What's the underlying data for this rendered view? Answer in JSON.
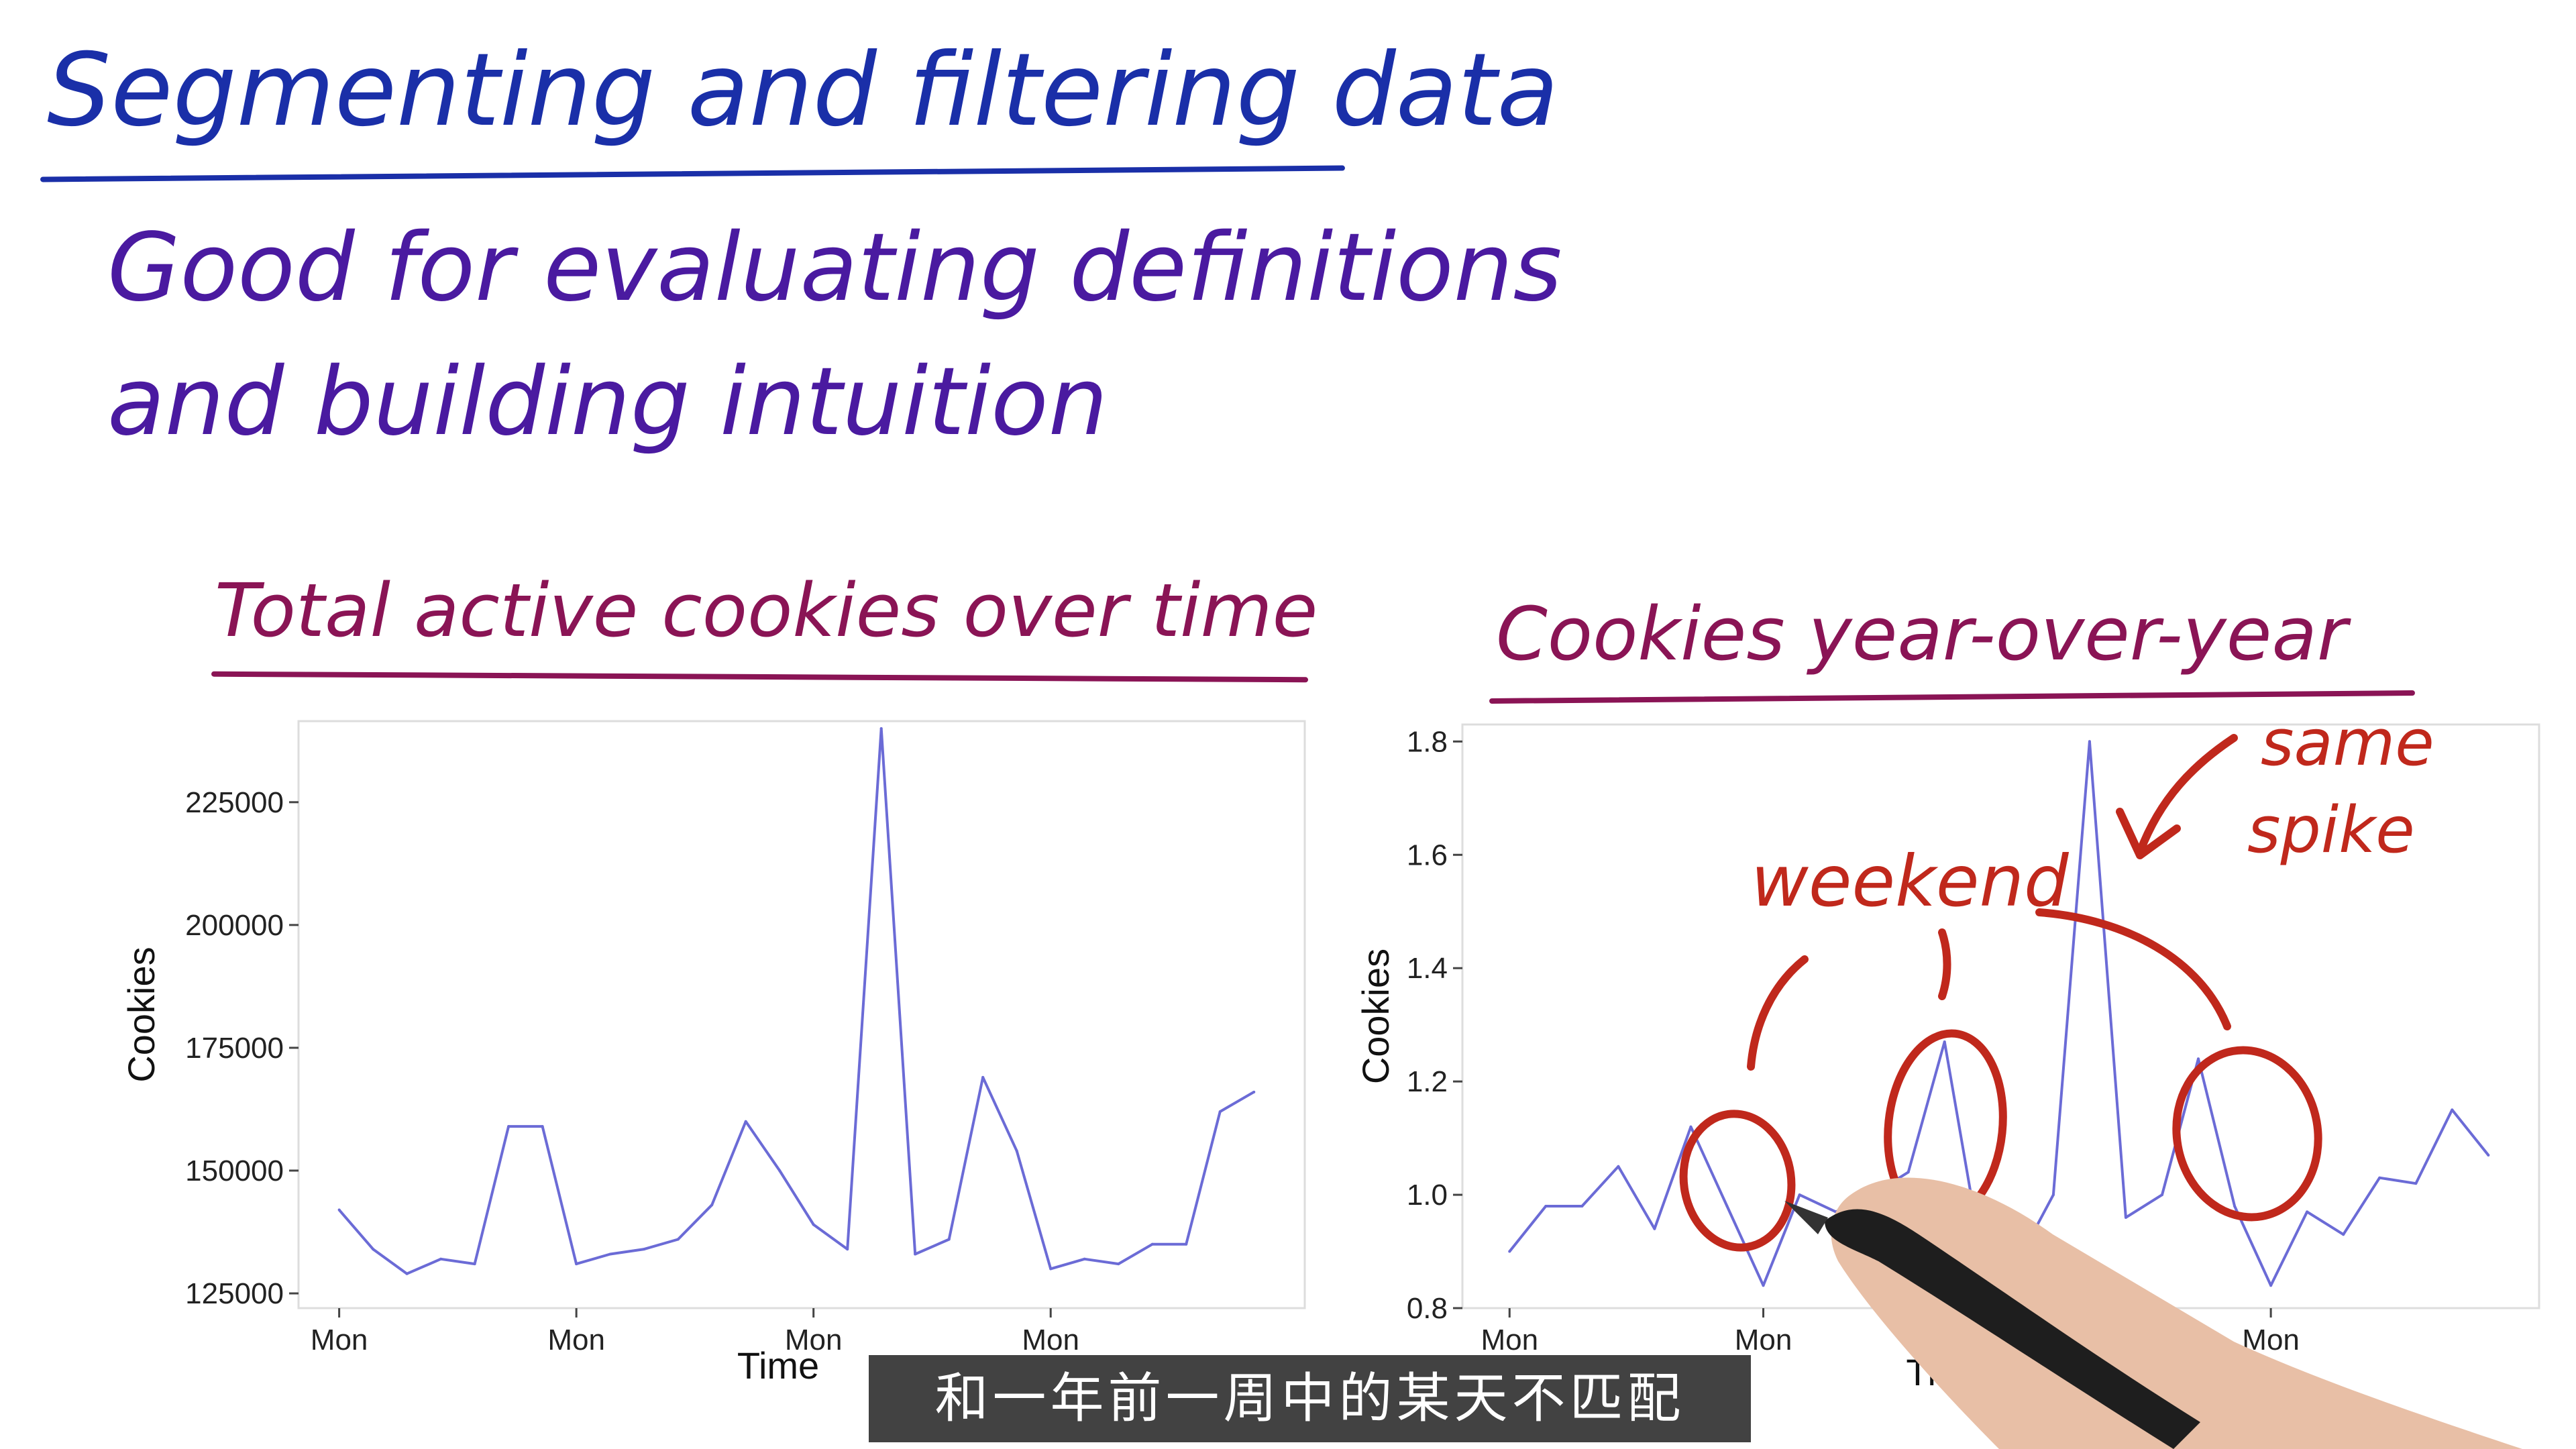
{
  "header": {
    "title": "Segmenting and filtering data",
    "subtitle_line1": "Good for evaluating definitions",
    "subtitle_line2": "and building intuition"
  },
  "chart_titles": {
    "left": "Total active cookies over time",
    "right": "Cookies year-over-year"
  },
  "annotations": {
    "weekend": "weekend",
    "same": "same",
    "spike": "spike"
  },
  "caption": "和一年前一周中的某天不匹配",
  "colors": {
    "title_blue": "#1a2fa8",
    "subtitle_purple": "#4a1aa0",
    "chart_title_magenta": "#8a1455",
    "line": "#6b6bd6",
    "annotation_red": "#c0281c"
  },
  "chart_data": [
    {
      "type": "line",
      "title": "Total active cookies over time",
      "xlabel": "Time",
      "ylabel": "Cookies",
      "x_tick_labels": [
        "Mon",
        "Mon",
        "Mon",
        "Mon"
      ],
      "x_tick_index": [
        0,
        7,
        14,
        21
      ],
      "y_ticks": [
        125000,
        150000,
        175000,
        200000,
        225000
      ],
      "ylim": [
        122000,
        241500
      ],
      "xlim": [
        -1.2,
        28.5
      ],
      "grid": false,
      "series": [
        {
          "values": [
            142000,
            134000,
            129000,
            132000,
            131000,
            159000,
            159000,
            131000,
            133000,
            134000,
            136000,
            143000,
            160000,
            150000,
            139000,
            134000,
            240000,
            133000,
            136000,
            169000,
            154000,
            130000,
            132000,
            131000,
            135000,
            135000,
            162000,
            166000
          ]
        }
      ]
    },
    {
      "type": "line",
      "title": "Cookies year-over-year",
      "xlabel": "Time",
      "ylabel": "Cookies",
      "x_tick_labels": [
        "Mon",
        "Mon",
        "Mon",
        "Mon"
      ],
      "x_tick_index": [
        0,
        7,
        14,
        21
      ],
      "y_ticks": [
        0.8,
        1.0,
        1.2,
        1.4,
        1.6,
        1.8
      ],
      "ylim": [
        0.8,
        1.83
      ],
      "xlim": [
        -1.3,
        28.4
      ],
      "grid": false,
      "series": [
        {
          "values": [
            0.9,
            0.98,
            0.98,
            1.05,
            0.94,
            1.12,
            0.98,
            0.84,
            1.0,
            0.97,
            1.0,
            1.04,
            1.27,
            0.9,
            0.88,
            1.0,
            1.8,
            0.96,
            1.0,
            1.24,
            0.98,
            0.84,
            0.97,
            0.93,
            1.03,
            1.02,
            1.15,
            1.07
          ]
        }
      ]
    }
  ]
}
